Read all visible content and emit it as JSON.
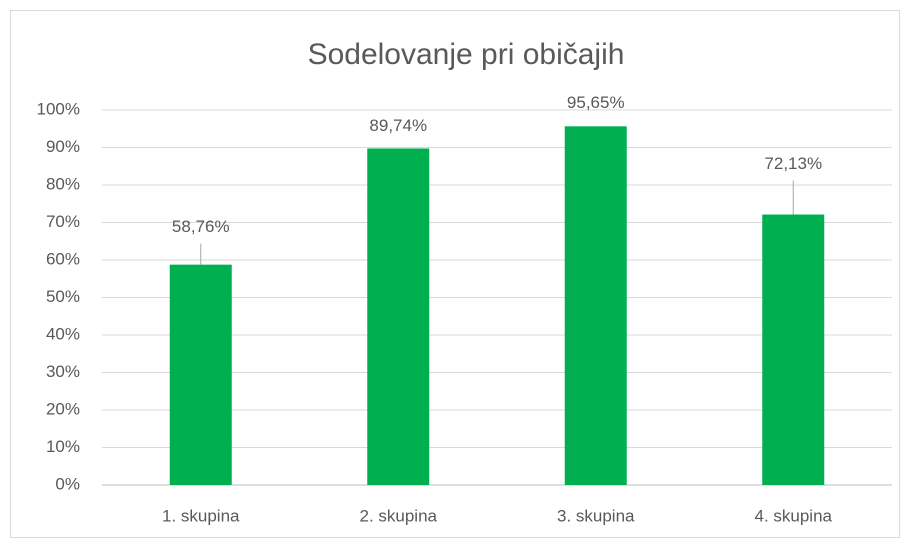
{
  "chart_data": {
    "type": "bar",
    "title": "Sodelovanje pri običajih",
    "categories": [
      "1. skupina",
      "2. skupina",
      "3. skupina",
      "4. skupina"
    ],
    "values": [
      58.76,
      89.74,
      95.65,
      72.13
    ],
    "value_labels": [
      "58,76%",
      "89,74%",
      "95,65%",
      "72,13%"
    ],
    "color": "#00b050",
    "ylim": [
      0,
      100
    ],
    "yticks": [
      {
        "value": 0,
        "label": "0%"
      },
      {
        "value": 10,
        "label": "10%"
      },
      {
        "value": 20,
        "label": "20%"
      },
      {
        "value": 30,
        "label": "30%"
      },
      {
        "value": 40,
        "label": "40%"
      },
      {
        "value": 50,
        "label": "50%"
      },
      {
        "value": 60,
        "label": "60%"
      },
      {
        "value": 70,
        "label": "70%"
      },
      {
        "value": 80,
        "label": "80%"
      },
      {
        "value": 90,
        "label": "90%"
      },
      {
        "value": 100,
        "label": "100%"
      }
    ],
    "grid": true
  }
}
